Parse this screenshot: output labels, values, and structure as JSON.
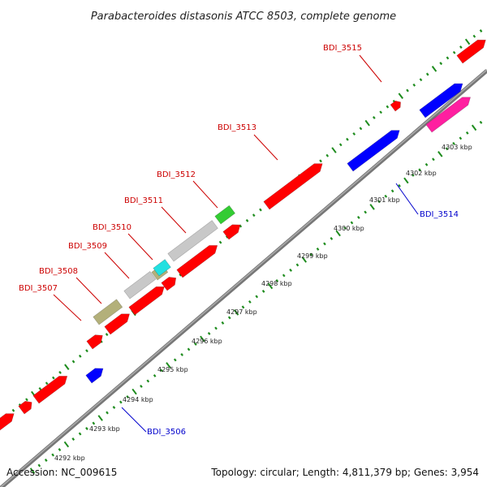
{
  "title": "Parabacteroides distasonis ATCC 8503, complete genome",
  "footer": {
    "accession": "Accession: NC_009615",
    "summary": "Topology: circular; Length: 4,811,379 bp; Genes: 3,954"
  },
  "scale_labels": [
    "4292 kbp",
    "4293 kbp",
    "4294 kbp",
    "4295 kbp",
    "4296 kbp",
    "4297 kbp",
    "4298 kbp",
    "4299 kbp",
    "4300 kbp",
    "4301 kbp",
    "4302 kbp",
    "4303 kbp"
  ],
  "gene_labels": {
    "bdi_3507": "BDI_3507",
    "bdi_3508": "BDI_3508",
    "bdi_3509": "BDI_3509",
    "bdi_3510": "BDI_3510",
    "bdi_3511": "BDI_3511",
    "bdi_3512": "BDI_3512",
    "bdi_3513": "BDI_3513",
    "bdi_3515": "BDI_3515",
    "bdi_3506": "BDI_3506",
    "bdi_3514": "BDI_3514"
  },
  "colors": {
    "backbone": "#888888",
    "forward_gene": "#ff0000",
    "reverse_gene": "#0000ff",
    "gray_gene": "#c8c8c8",
    "olive_gene": "#b3b07a",
    "cyan_gene": "#22e0e0",
    "green_gene": "#33cc33",
    "magenta_gene": "#ff1fa0",
    "tick_green": "#1e8c1e",
    "forward_label": "#cc0000",
    "reverse_label": "#0000cc"
  }
}
